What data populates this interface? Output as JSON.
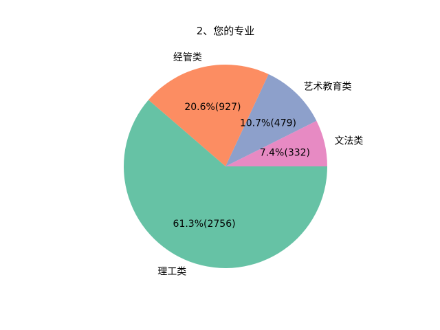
{
  "chart_data": {
    "type": "pie",
    "title": "2、您的专业",
    "categories": [
      "文法类",
      "艺术教育类",
      "经管类",
      "理工类"
    ],
    "values": [
      332,
      479,
      927,
      2756
    ],
    "percent_labels": [
      "7.4%(332)",
      "10.7%(479)",
      "20.6%(927)",
      "61.3%(2756)"
    ],
    "colors": [
      "#e78ac3",
      "#8da0cb",
      "#fc8d62",
      "#66c2a5"
    ],
    "start_angle_deg": 0,
    "direction": "counterclockwise",
    "legend": "none"
  }
}
